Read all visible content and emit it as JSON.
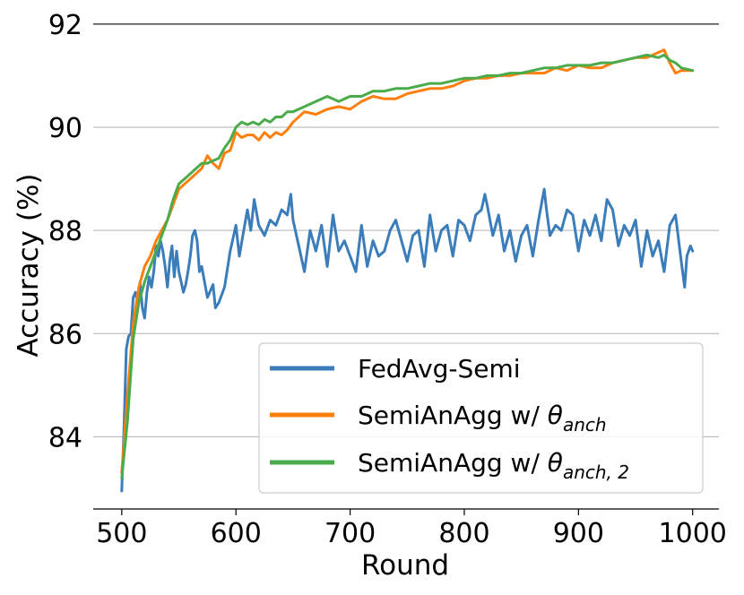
{
  "chart_data": {
    "type": "line",
    "title": "",
    "xlabel": "Round",
    "ylabel": "Accuracy (%)",
    "xlim": [
      475,
      1023
    ],
    "ylim": [
      82.6,
      92.05
    ],
    "xticks": [
      500,
      600,
      700,
      800,
      900,
      1000
    ],
    "yticks": [
      84,
      86,
      88,
      90,
      92
    ],
    "grid": "horizontal",
    "legend_position": "lower-right",
    "series": [
      {
        "name": "FedAvg-Semi",
        "color": "#3b7dba",
        "x": [
          500,
          502,
          504,
          506,
          508,
          510,
          512,
          514,
          516,
          518,
          520,
          522,
          524,
          526,
          528,
          530,
          532,
          534,
          536,
          538,
          540,
          542,
          544,
          546,
          548,
          550,
          552,
          554,
          556,
          558,
          560,
          562,
          564,
          566,
          568,
          570,
          575,
          580,
          582,
          585,
          590,
          595,
          600,
          603,
          606,
          610,
          613,
          616,
          620,
          625,
          630,
          635,
          640,
          645,
          648,
          650,
          655,
          660,
          665,
          670,
          675,
          680,
          685,
          690,
          695,
          700,
          705,
          710,
          715,
          720,
          725,
          730,
          735,
          740,
          745,
          750,
          755,
          760,
          765,
          770,
          775,
          780,
          785,
          790,
          795,
          800,
          805,
          810,
          815,
          818,
          820,
          825,
          830,
          835,
          840,
          845,
          850,
          855,
          860,
          865,
          870,
          872,
          875,
          880,
          885,
          890,
          895,
          900,
          905,
          910,
          915,
          920,
          925,
          930,
          935,
          940,
          945,
          950,
          955,
          960,
          965,
          970,
          975,
          980,
          985,
          990,
          993,
          995,
          998,
          1000
        ],
        "y": [
          82.95,
          84.2,
          85.7,
          85.95,
          86.0,
          86.7,
          86.8,
          86.6,
          87.0,
          86.5,
          86.3,
          86.8,
          87.1,
          86.9,
          87.2,
          87.7,
          87.5,
          87.8,
          87.6,
          87.3,
          86.9,
          87.4,
          87.7,
          87.1,
          87.6,
          87.2,
          87.0,
          86.8,
          86.95,
          87.2,
          87.5,
          87.9,
          88.0,
          87.8,
          87.2,
          87.3,
          86.7,
          86.95,
          86.5,
          86.6,
          86.9,
          87.6,
          88.1,
          87.5,
          87.9,
          88.4,
          88.0,
          88.6,
          88.1,
          87.9,
          88.2,
          88.1,
          88.4,
          88.3,
          88.7,
          88.2,
          87.7,
          87.2,
          88.0,
          87.6,
          88.1,
          87.3,
          88.3,
          87.6,
          87.8,
          87.5,
          87.2,
          88.1,
          87.3,
          87.8,
          87.5,
          87.6,
          88.0,
          88.2,
          87.8,
          87.4,
          87.9,
          88.0,
          87.3,
          88.3,
          87.6,
          88.0,
          88.1,
          87.5,
          88.2,
          88.1,
          87.8,
          88.3,
          88.4,
          88.7,
          88.5,
          87.9,
          88.3,
          87.6,
          88.0,
          87.4,
          87.9,
          88.1,
          87.5,
          88.2,
          88.8,
          88.4,
          87.9,
          88.1,
          88.0,
          88.4,
          88.3,
          87.6,
          88.2,
          87.9,
          88.3,
          87.8,
          88.6,
          88.4,
          87.7,
          88.1,
          87.9,
          88.2,
          87.3,
          88.0,
          87.5,
          87.8,
          87.2,
          88.1,
          88.3,
          87.4,
          86.9,
          87.5,
          87.7,
          87.6
        ]
      },
      {
        "name": "SemiAnAgg w/ θanch",
        "color": "#ff7f0e",
        "x": [
          500,
          505,
          510,
          515,
          520,
          525,
          530,
          535,
          540,
          545,
          550,
          555,
          560,
          565,
          570,
          575,
          580,
          585,
          590,
          595,
          600,
          605,
          610,
          615,
          620,
          625,
          630,
          635,
          640,
          645,
          650,
          660,
          670,
          680,
          690,
          700,
          710,
          720,
          730,
          740,
          750,
          760,
          770,
          780,
          790,
          800,
          810,
          820,
          830,
          840,
          850,
          860,
          870,
          880,
          890,
          900,
          910,
          920,
          930,
          940,
          950,
          960,
          970,
          975,
          980,
          985,
          990,
          1000
        ],
        "y": [
          83.3,
          84.8,
          86.2,
          86.9,
          87.3,
          87.5,
          87.8,
          88.0,
          88.2,
          88.5,
          88.8,
          88.9,
          89.0,
          89.1,
          89.2,
          89.45,
          89.3,
          89.2,
          89.5,
          89.55,
          89.9,
          89.8,
          89.85,
          89.85,
          89.75,
          89.9,
          89.8,
          89.9,
          89.85,
          89.95,
          90.1,
          90.3,
          90.25,
          90.35,
          90.4,
          90.35,
          90.5,
          90.6,
          90.55,
          90.55,
          90.65,
          90.7,
          90.75,
          90.75,
          90.8,
          90.9,
          90.95,
          90.95,
          91.0,
          91.0,
          91.05,
          91.05,
          91.05,
          91.15,
          91.1,
          91.2,
          91.15,
          91.15,
          91.25,
          91.3,
          91.35,
          91.35,
          91.45,
          91.5,
          91.25,
          91.05,
          91.1,
          91.1
        ]
      },
      {
        "name": "SemiAnAgg w/ θanch,2",
        "color": "#4aab4a",
        "x": [
          500,
          505,
          510,
          515,
          520,
          525,
          530,
          535,
          540,
          545,
          550,
          555,
          560,
          565,
          570,
          575,
          580,
          585,
          590,
          595,
          600,
          605,
          610,
          615,
          620,
          625,
          630,
          635,
          640,
          645,
          650,
          660,
          670,
          680,
          690,
          700,
          710,
          720,
          730,
          740,
          750,
          760,
          770,
          780,
          790,
          800,
          810,
          820,
          830,
          840,
          850,
          860,
          870,
          880,
          890,
          900,
          910,
          920,
          930,
          940,
          950,
          960,
          970,
          975,
          980,
          985,
          990,
          1000
        ],
        "y": [
          83.2,
          84.3,
          85.9,
          86.6,
          87.0,
          87.3,
          87.6,
          87.9,
          88.2,
          88.6,
          88.9,
          89.0,
          89.1,
          89.2,
          89.3,
          89.3,
          89.35,
          89.4,
          89.6,
          89.75,
          90.0,
          90.1,
          90.05,
          90.1,
          90.05,
          90.15,
          90.1,
          90.2,
          90.2,
          90.3,
          90.3,
          90.4,
          90.5,
          90.6,
          90.5,
          90.6,
          90.6,
          90.7,
          90.7,
          90.75,
          90.75,
          90.8,
          90.85,
          90.85,
          90.9,
          90.95,
          90.95,
          91.0,
          91.0,
          91.05,
          91.05,
          91.1,
          91.15,
          91.15,
          91.2,
          91.2,
          91.2,
          91.25,
          91.25,
          91.3,
          91.35,
          91.4,
          91.35,
          91.4,
          91.3,
          91.25,
          91.15,
          91.1
        ]
      }
    ]
  },
  "legend": {
    "items": [
      {
        "text": "FedAvg-Semi",
        "symbol": "",
        "sub": ""
      },
      {
        "text": "SemiAnAgg w/ ",
        "symbol": "θ",
        "sub": "anch"
      },
      {
        "text": "SemiAnAgg w/ ",
        "symbol": "θ",
        "sub": "anch, 2"
      }
    ]
  }
}
